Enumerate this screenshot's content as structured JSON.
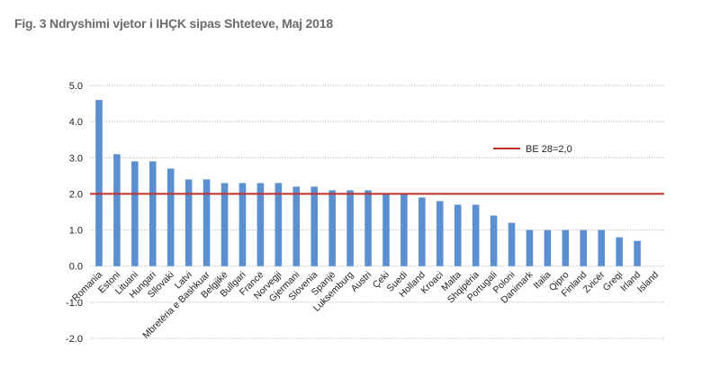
{
  "page_title": "Fig. 3 Ndryshimi vjetor i IHÇK sipas Shteteve, Maj 2018",
  "chart_data": {
    "type": "bar",
    "title": "Fig. 3 Ndryshimi vjetor i IHÇK sipas Shteteve, Maj 2018",
    "categories": [
      "Romania",
      "Estoni",
      "Lituani",
      "Hungari",
      "Sllovaki",
      "Latvi",
      "Mbretëria e Bashkuar",
      "Belgjikë",
      "Bullgari",
      "Francë",
      "Norvegji",
      "Gjermani",
      "Slovenia",
      "Spanjë",
      "Luksemburg",
      "Austri",
      "Çeki",
      "Suedi",
      "Holland",
      "Kroaci",
      "Malta",
      "Shqipëria",
      "Portugali",
      "Poloni",
      "Danimark",
      "Italia",
      "Qipro",
      "Finland",
      "Zvicër",
      "Greqi",
      "Irland",
      "Island"
    ],
    "values": [
      4.6,
      3.1,
      2.9,
      2.9,
      2.7,
      2.4,
      2.4,
      2.3,
      2.3,
      2.3,
      2.3,
      2.2,
      2.2,
      2.1,
      2.1,
      2.1,
      2.0,
      2.0,
      1.9,
      1.8,
      1.7,
      1.7,
      1.4,
      1.2,
      1.0,
      1.0,
      1.0,
      1.0,
      1.0,
      0.8,
      0.7,
      null
    ],
    "reference_line": {
      "label": "BE 28=2,0",
      "value": 2.0
    },
    "ylim": [
      -2.0,
      5.0
    ],
    "yticks": [
      "-2.0",
      "-1.0",
      "0.0",
      "1.0",
      "2.0",
      "3.0",
      "4.0",
      "5.0"
    ],
    "grid": true,
    "legend_position": "top-right",
    "colors": {
      "bar": "#5b8fcf",
      "reference": "#c0302b",
      "grid": "#bdbdbd"
    }
  }
}
